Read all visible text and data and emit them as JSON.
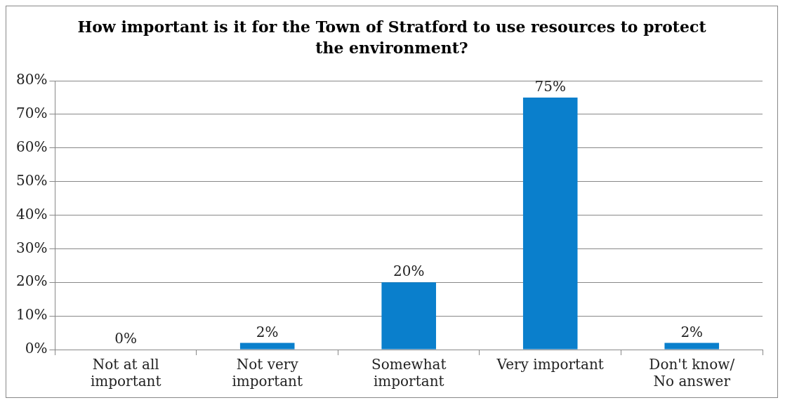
{
  "chart_data": {
    "type": "bar",
    "title": "How important is it for the Town of Stratford to use resources to protect the environment?",
    "categories": [
      "Not at all important",
      "Not very important",
      "Somewhat important",
      "Very important",
      "Don't know/ No answer"
    ],
    "values": [
      0,
      2,
      20,
      75,
      2
    ],
    "value_labels": [
      "0%",
      "2%",
      "20%",
      "75%",
      "2%"
    ],
    "color": "#0a7fcc",
    "ylim": [
      0,
      80
    ],
    "yticks": [
      {
        "value": 0,
        "label": "0%"
      },
      {
        "value": 10,
        "label": "10%"
      },
      {
        "value": 20,
        "label": "20%"
      },
      {
        "value": 30,
        "label": "30%"
      },
      {
        "value": 40,
        "label": "40%"
      },
      {
        "value": 50,
        "label": "50%"
      },
      {
        "value": 60,
        "label": "60%"
      },
      {
        "value": 70,
        "label": "70%"
      },
      {
        "value": 80,
        "label": "80%"
      }
    ],
    "grid": "y",
    "legend": false
  }
}
